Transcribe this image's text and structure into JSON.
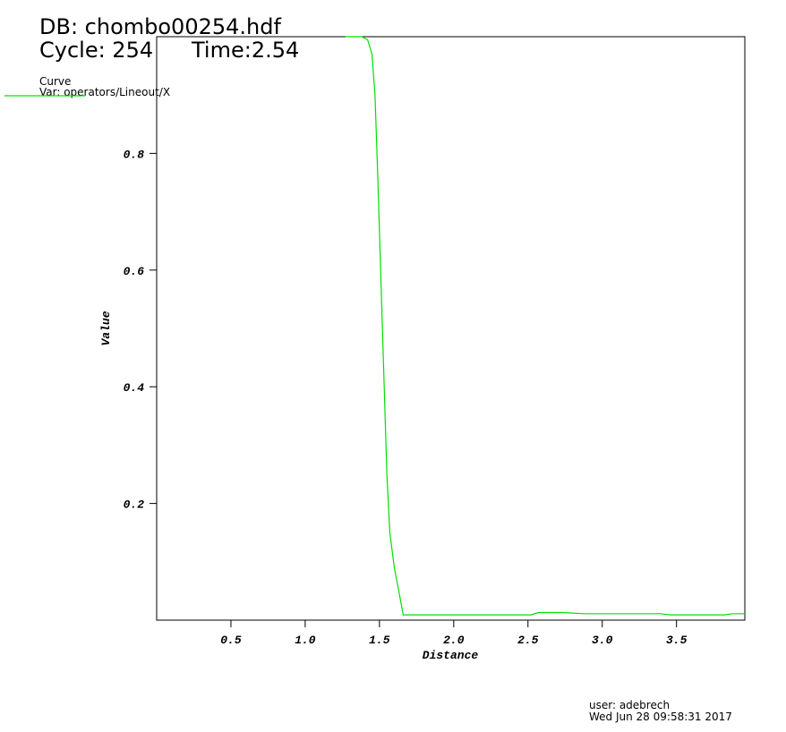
{
  "chart_data": {
    "type": "line",
    "title": "DB: chombo00254.hdf",
    "cycle": "Cycle: 254",
    "time": "Time:2.54",
    "legend_title": "Curve",
    "x_label": "Distance",
    "y_label": "Value",
    "x": [
      1.27,
      1.38,
      1.42,
      1.45,
      1.47,
      1.49,
      1.52,
      1.55,
      1.57,
      1.6,
      1.63,
      1.66,
      2.52,
      2.57,
      2.73,
      2.88,
      3.39,
      3.46,
      3.82,
      3.88,
      3.96
    ],
    "series": [
      {
        "name": "Var: operators/Lineout/X",
        "color": "#00e000",
        "values": [
          1.0,
          1.0,
          0.995,
          0.97,
          0.9,
          0.75,
          0.5,
          0.25,
          0.15,
          0.09,
          0.05,
          0.009,
          0.009,
          0.013,
          0.013,
          0.011,
          0.011,
          0.009,
          0.009,
          0.011,
          0.011
        ]
      }
    ],
    "xlim": [
      0,
      3.96
    ],
    "ylim": [
      0,
      1.0
    ],
    "xticks": [
      0.5,
      {
        "value": 1,
        "label": "1.0"
      },
      1.5,
      {
        "value": 2,
        "label": "2.0"
      },
      2.5,
      {
        "value": 3,
        "label": "3.0"
      },
      3.5
    ],
    "yticks": [
      0.2,
      0.4,
      0.6,
      0.8
    ]
  },
  "footer": {
    "user": "user: adebrech",
    "date": "Wed Jun 28 09:58:31 2017"
  }
}
